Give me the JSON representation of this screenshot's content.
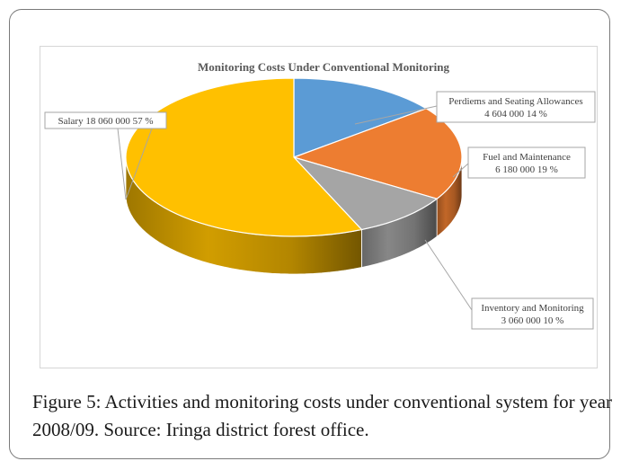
{
  "chart_data": {
    "type": "pie",
    "title": "Monitoring  Costs  Under  Conventional  Monitoring",
    "slices": [
      {
        "label": "Perdiems and Seating Allowances",
        "amount": "4 604 000",
        "value": 4604000,
        "percent": "14 %",
        "color": "#5b9bd5"
      },
      {
        "label": "Fuel and Maintenance",
        "amount": "6 180 000",
        "value": 6180000,
        "percent": "19 %",
        "color": "#ed7d31"
      },
      {
        "label": "Inventory and Monitoring",
        "amount": "3 060 000",
        "value": 3060000,
        "percent": "10 %",
        "color": "#a5a5a5"
      },
      {
        "label": "Salary",
        "amount": "18 060 000",
        "value": 18060000,
        "percent": "57 %",
        "color": "#ffc000"
      }
    ]
  },
  "caption": {
    "label": "Figure 5:",
    "text": " Activities and monitoring costs under conventional system for year 2008/09. Source: Iringa district forest office."
  }
}
